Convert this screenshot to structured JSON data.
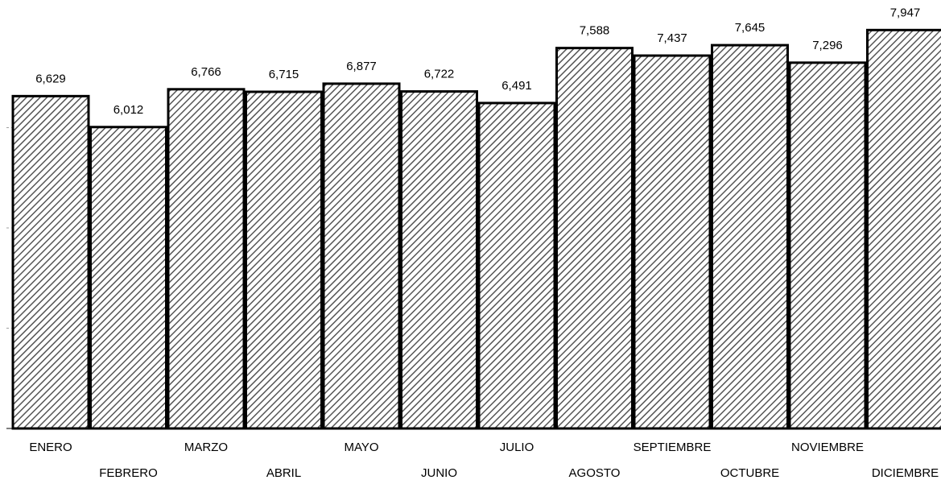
{
  "chart_data": {
    "type": "bar",
    "categories": [
      "ENERO",
      "FEBRERO",
      "MARZO",
      "ABRIL",
      "MAYO",
      "JUNIO",
      "JULIO",
      "AGOSTO",
      "SEPTIEMBRE",
      "OCTUBRE",
      "NOVIEMBRE",
      "DICIEMBRE"
    ],
    "values": [
      6629,
      6012,
      6766,
      6715,
      6877,
      6722,
      6491,
      7588,
      7437,
      7645,
      7296,
      7947
    ],
    "value_labels": [
      "6,629",
      "6,012",
      "6,766",
      "6,715",
      "6,877",
      "6,722",
      "6,491",
      "7,588",
      "7,437",
      "7,645",
      "7,296",
      "7,947"
    ],
    "title": "",
    "xlabel": "",
    "ylabel": "",
    "ylim": [
      0,
      8000
    ],
    "grid": true,
    "legend": "none",
    "bar_fill": "diagonal-hatch",
    "colors": {
      "bar_stroke": "#000000",
      "hatch": "#555555",
      "grid": "#a0a0a0",
      "background": "#ffffff"
    }
  }
}
